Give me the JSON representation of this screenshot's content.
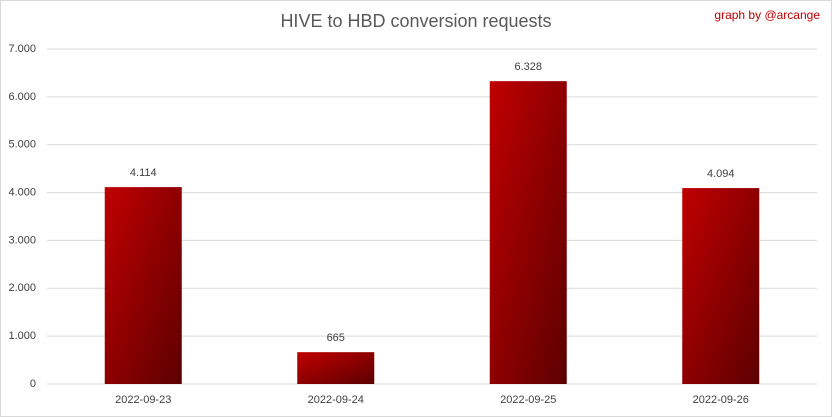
{
  "chart_data": {
    "type": "bar",
    "title": "HIVE to HBD conversion requests",
    "annotation": "graph by @arcange",
    "categories": [
      "2022-09-23",
      "2022-09-24",
      "2022-09-25",
      "2022-09-26"
    ],
    "values": [
      4114,
      665,
      6328,
      4094
    ],
    "value_labels": [
      "4.114",
      "665",
      "6.328",
      "4.094"
    ],
    "color": "#c00000",
    "ylim": [
      0,
      7000
    ],
    "yticks": [
      0,
      {
        "value": 1000,
        "label": "1.000"
      },
      {
        "value": 2000,
        "label": "2.000"
      },
      {
        "value": 3000,
        "label": "3.000"
      },
      {
        "value": 4000,
        "label": "4.000"
      },
      {
        "value": 5000,
        "label": "5.000"
      },
      {
        "value": 6000,
        "label": "6.000"
      },
      {
        "value": 7000,
        "label": "7.000"
      }
    ],
    "grid": true
  }
}
